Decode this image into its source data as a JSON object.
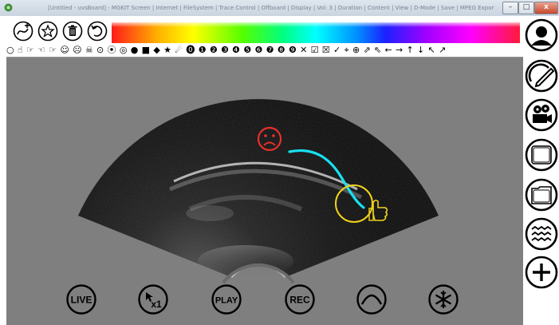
{
  "window": {
    "title": "[Untitled - uvsBoard] - MGKIT Screen | Internet | FileSystem | Trace Control | Offboard | Display | Vol: 3 | Duration | Content | View | D-Mode | Save | MPEG Export | APRS Indicators | APRS Map | APRS Cross",
    "minimize_icon": "minimize-icon",
    "maximize_icon": "maximize-icon",
    "close_icon": "close-icon",
    "close_label": "x"
  },
  "toolbar": {
    "tools": [
      {
        "name": "curve-add-icon"
      },
      {
        "name": "star-add-icon"
      },
      {
        "name": "trash-icon"
      },
      {
        "name": "undo-icon"
      }
    ],
    "color_spectrum_icon": "color-spectrum",
    "symbols": "○ ☝ ☞ ☜ ☞ ☺ ☹ ☠ ⊙ ⦿ ◎ ● ■ ◆ ★ ☄ ⓿ ❶ ❷ ❸ ❹ ❺ ❻ ❼ ❽ ❾ ✕ ☑ ☒ ✓ ⌖ ⊕ ⇗ ⇖ ← → ↑ ↓ ↖ ↗"
  },
  "overlay": {
    "annotation_color_red": "#e8302a",
    "annotation_color_cyan": "#18e0f0",
    "annotation_color_yellow": "#f2d21c",
    "sad_face_icon": "sad-face-icon",
    "thumbs_up_icon": "thumbs-up-icon"
  },
  "controls": {
    "live": "LIVE",
    "speed": "x1",
    "play": "PLAY",
    "rec": "REC",
    "curve_icon": "curve-icon",
    "freeze_icon": "snowflake-icon"
  },
  "sidebar": {
    "items": [
      {
        "icon": "user-icon"
      },
      {
        "icon": "gauge-edit-icon"
      },
      {
        "icon": "video-camera-icon"
      },
      {
        "icon": "blank-frame-icon"
      },
      {
        "icon": "folder-frame-icon"
      },
      {
        "icon": "waves-icon"
      },
      {
        "icon": "add-icon"
      }
    ]
  }
}
